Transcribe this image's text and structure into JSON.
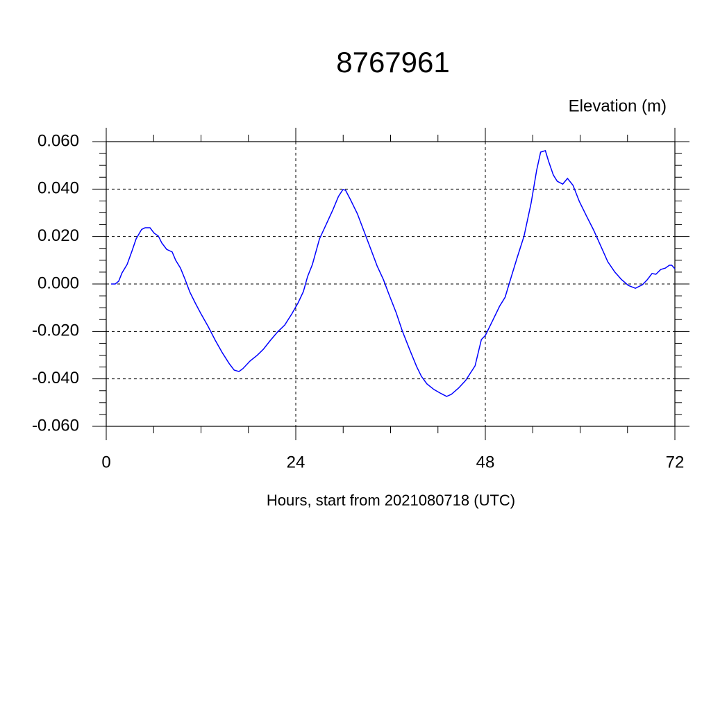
{
  "chart_data": {
    "type": "line",
    "title": "8767961",
    "subtitle": "Elevation (m)",
    "x_label": "Hours, start from 2021080718 (UTC)",
    "x": [
      0.62,
      1.14,
      1.58,
      2.0,
      2.64,
      3.25,
      3.78,
      4.48,
      4.92,
      5.54,
      6.07,
      6.6,
      7.03,
      7.65,
      8.35,
      8.79,
      9.4,
      10.0,
      10.6,
      11.3,
      12.0,
      12.9,
      13.8,
      14.7,
      15.6,
      16.2,
      16.8,
      17.3,
      18.2,
      19.1,
      19.9,
      20.8,
      21.7,
      22.6,
      23.5,
      24.3,
      24.96,
      25.5,
      26.1,
      27.0,
      27.9,
      28.7,
      29.4,
      29.97,
      30.3,
      30.9,
      31.8,
      32.7,
      33.6,
      34.3,
      35.1,
      35.8,
      36.7,
      37.5,
      38.4,
      39.3,
      39.9,
      40.6,
      41.5,
      42.4,
      43.1,
      43.7,
      44.6,
      45.5,
      46.7,
      47.5,
      48.0,
      49.0,
      49.8,
      50.5,
      51.3,
      52.0,
      52.9,
      53.8,
      54.5,
      55.0,
      55.6,
      56.0,
      56.6,
      57.1,
      57.8,
      58.4,
      59.1,
      59.9,
      60.8,
      61.7,
      62.6,
      63.5,
      64.4,
      65.2,
      66.1,
      67.0,
      67.9,
      68.5,
      69.1,
      69.6,
      70.2,
      70.8,
      71.3,
      71.6,
      72.0
    ],
    "series": [
      {
        "color": "#0000ff",
        "values": [
          0,
          0,
          0.0012,
          0.0047,
          0.0082,
          0.0138,
          0.019,
          0.023,
          0.0237,
          0.0237,
          0.0214,
          0.0202,
          0.0173,
          0.0146,
          0.0135,
          0.01,
          0.0067,
          0.0018,
          -0.0035,
          -0.0082,
          -0.0126,
          -0.0179,
          -0.0237,
          -0.029,
          -0.0337,
          -0.0363,
          -0.0369,
          -0.0357,
          -0.0325,
          -0.0301,
          -0.0275,
          -0.0237,
          -0.0202,
          -0.0173,
          -0.0126,
          -0.0079,
          -0.0032,
          0.0032,
          0.0082,
          0.019,
          0.0255,
          0.0313,
          0.0369,
          0.0398,
          0.0395,
          0.0357,
          0.0296,
          0.0217,
          0.0138,
          0.0076,
          0.0018,
          -0.0044,
          -0.012,
          -0.0199,
          -0.0275,
          -0.0348,
          -0.0389,
          -0.0421,
          -0.0445,
          -0.0462,
          -0.0474,
          -0.0465,
          -0.0439,
          -0.0407,
          -0.0345,
          -0.0234,
          -0.0217,
          -0.0149,
          -0.0094,
          -0.0056,
          0.0032,
          0.0108,
          0.0202,
          0.0342,
          0.048,
          0.0556,
          0.0562,
          0.0518,
          0.046,
          0.0433,
          0.0421,
          0.0445,
          0.0416,
          0.0348,
          0.0287,
          0.0228,
          0.0161,
          0.0094,
          0.005,
          0.002,
          -0.0006,
          -0.0018,
          -0.0003,
          0.0018,
          0.0044,
          0.0041,
          0.0061,
          0.0067,
          0.0079,
          0.0079,
          0.0064
        ]
      }
    ],
    "xlim": [
      0,
      72
    ],
    "xticks": [
      0,
      24,
      48,
      72
    ],
    "ylim": [
      -0.06,
      0.06
    ],
    "yticks": [
      {
        "value": -0.06,
        "label": "-0.060"
      },
      {
        "value": -0.04,
        "label": "-0.040"
      },
      {
        "value": -0.02,
        "label": "-0.020"
      },
      {
        "value": 0,
        "label": "0.000"
      },
      {
        "value": 0.02,
        "label": "0.020"
      },
      {
        "value": 0.04,
        "label": "0.040"
      },
      {
        "value": 0.06,
        "label": "0.060"
      }
    ],
    "grid": true
  }
}
